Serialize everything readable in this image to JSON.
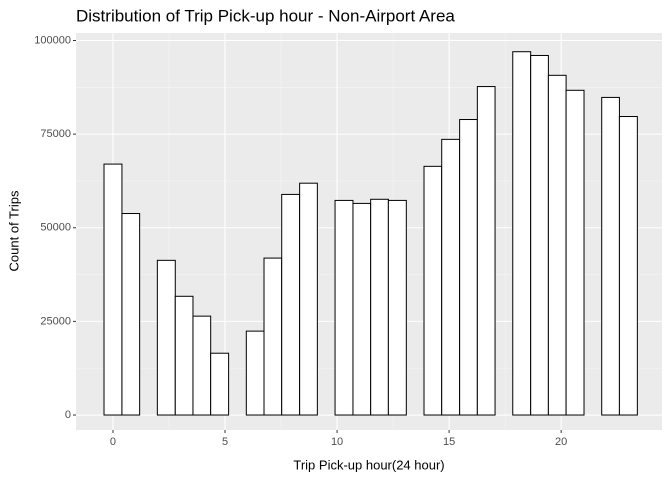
{
  "chart_data": {
    "type": "histogram",
    "title": "Distribution of Trip Pick-up hour - Non-Airport Area",
    "x_label": "Trip Pick-up hour(24 hour)",
    "y_label": "Count of Trips",
    "bins": [
      -0.4,
      0.4,
      1.19,
      1.98,
      2.78,
      3.57,
      4.36,
      5.16,
      5.95,
      6.74,
      7.53,
      8.33,
      9.12,
      9.91,
      10.71,
      11.5,
      12.29,
      13.09,
      13.88,
      14.67,
      15.47,
      16.26,
      17.05,
      17.84,
      18.64,
      19.43,
      20.22,
      21.02,
      21.81,
      22.6,
      23.4
    ],
    "values": [
      67000,
      53800,
      0,
      41300,
      31700,
      26400,
      16500,
      0,
      22400,
      41900,
      58900,
      61900,
      0,
      57300,
      56500,
      57600,
      57300,
      0,
      66400,
      73600,
      78900,
      87700,
      0,
      97000,
      96000,
      90700,
      86700,
      0,
      84800,
      79700
    ],
    "color": "#ffffff",
    "edge_color": "#000000",
    "xlim": [
      -1.65,
      24.5
    ],
    "xticks": [
      0,
      5,
      10,
      15,
      20
    ],
    "ylim": [
      -4000,
      102000
    ],
    "yticks": [
      0,
      25000,
      50000,
      75000,
      100000
    ],
    "grid": true
  }
}
